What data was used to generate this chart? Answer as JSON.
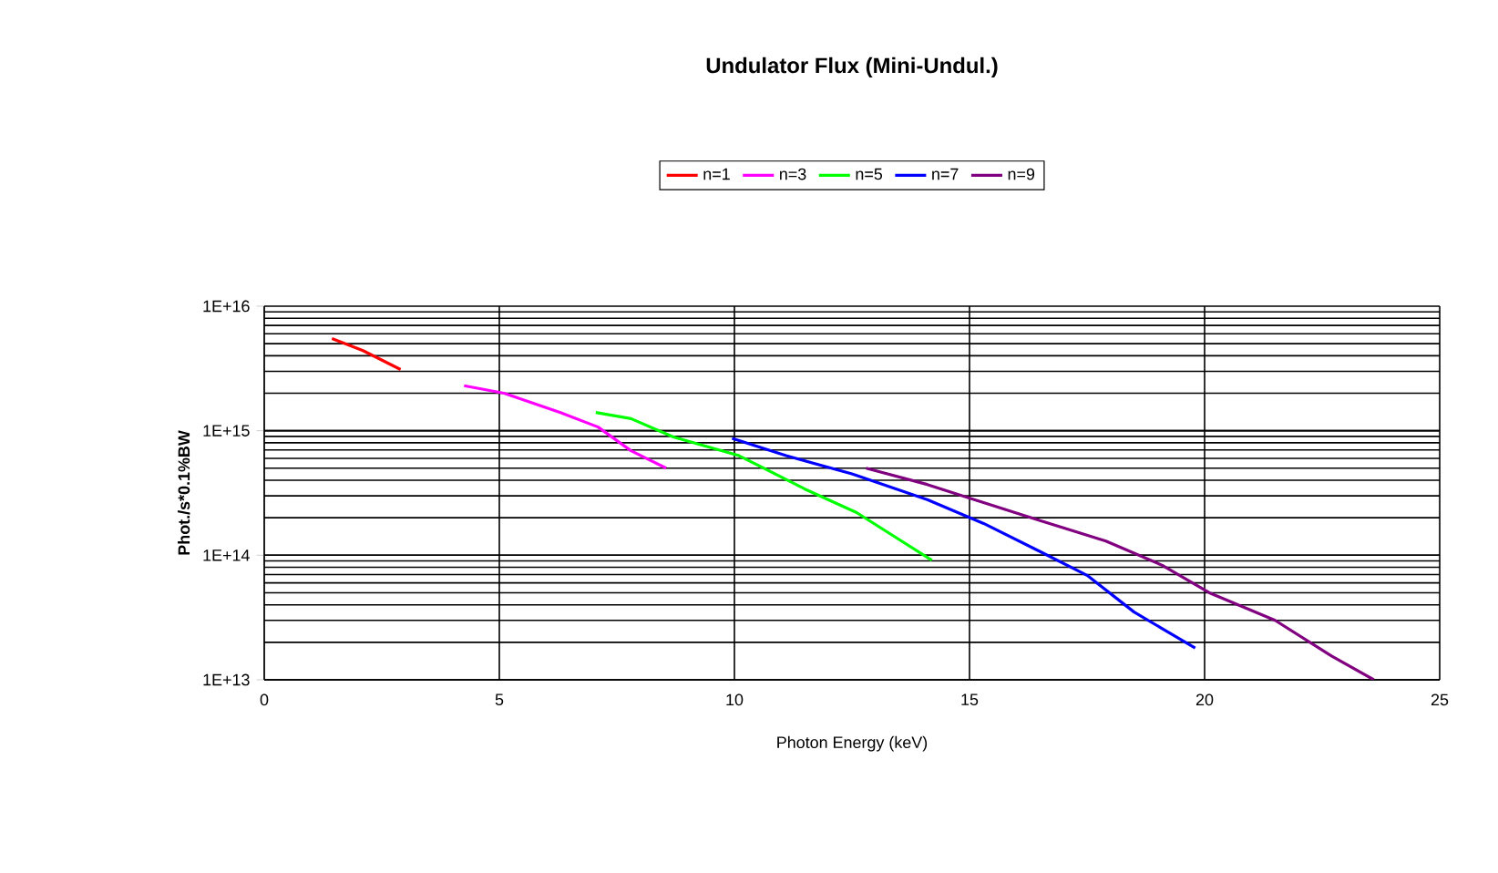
{
  "chart_data": {
    "type": "line",
    "title": "Undulator Flux (Mini-Undul.)",
    "xlabel": "Photon Energy (keV)",
    "ylabel": "Phot./s*0.1%BW",
    "log": "y",
    "grid": true,
    "legend": "top",
    "marker": "none",
    "line_style": "solid",
    "xlim": [
      0,
      25
    ],
    "xticks": [
      0,
      5,
      10,
      15,
      20,
      25
    ],
    "ylim": [
      10000000000000.0,
      1e+16
    ],
    "yticks": [
      {
        "value": 10000000000000.0,
        "label": "1E+13"
      },
      {
        "value": 100000000000000.0,
        "label": "1E+14"
      },
      {
        "value": 1000000000000000.0,
        "label": "1E+15"
      },
      {
        "value": 1e+16,
        "label": "1E+16"
      }
    ],
    "series": [
      {
        "name": "n=1",
        "color": "#ff0000",
        "x": [
          1.44,
          2.1,
          2.9
        ],
        "values": [
          5500000000000000.0,
          4400000000000000.0,
          3100000000000000.0
        ]
      },
      {
        "name": "n=3",
        "color": "#ff00ff",
        "x": [
          4.25,
          5.1,
          6.3,
          7.1,
          7.8,
          8.55
        ],
        "values": [
          2300000000000000.0,
          2000000000000000.0,
          1400000000000000.0,
          1070000000000000.0,
          690000000000000.0,
          500000000000000.0
        ]
      },
      {
        "name": "n=5",
        "color": "#00ff00",
        "x": [
          7.05,
          7.8,
          8.7,
          10.1,
          11.5,
          12.6,
          14.2
        ],
        "values": [
          1400000000000000.0,
          1250000000000000.0,
          890000000000000.0,
          630000000000000.0,
          340000000000000.0,
          220000000000000.0,
          91000000000000.0
        ]
      },
      {
        "name": "n=7",
        "color": "#0000ff",
        "x": [
          9.95,
          11.1,
          12.5,
          14.1,
          15.3,
          16.5,
          17.5,
          18.5,
          19.8
        ],
        "values": [
          870000000000000.0,
          630000000000000.0,
          450000000000000.0,
          280000000000000.0,
          180000000000000.0,
          107000000000000.0,
          69000000000000.0,
          35000000000000.0,
          18000000000000.0
        ]
      },
      {
        "name": "n=9",
        "color": "#800080",
        "x": [
          12.8,
          14.1,
          15.1,
          16.5,
          17.9,
          19.1,
          20.1,
          21.5,
          22.7,
          23.6
        ],
        "values": [
          500000000000000.0,
          370000000000000.0,
          280000000000000.0,
          190000000000000.0,
          130000000000000.0,
          83000000000000.0,
          50000000000000.0,
          30000000000000.0,
          15500000000000.0,
          10000000000000.0
        ]
      }
    ]
  }
}
